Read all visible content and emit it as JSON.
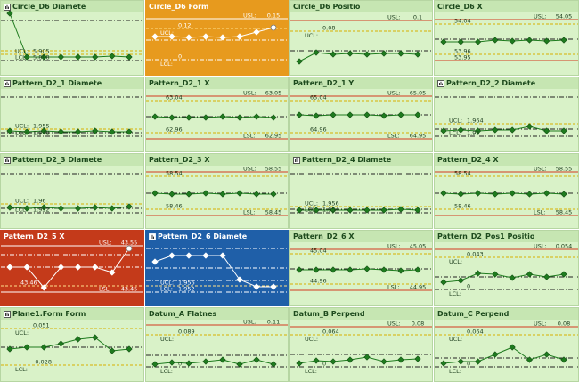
{
  "colors": {
    "tile_bg": "#d9f2c8",
    "tile_title_bg": "#c6e6b2",
    "line_green": "#1e7b1e",
    "orange": "#e79a1e",
    "red": "#c43a1a",
    "blue": "#1f5fa8",
    "ucl_red": "#d23a1f",
    "dash_yellow": "#d8b000"
  },
  "tiles": [
    {
      "title": "Circle_D6 Diamete",
      "icon": "histogram-icon",
      "state": "normal",
      "labels": {
        "ucl": "UCL:",
        "lcl": "LCL:",
        "c1": "5.905",
        "c2": "5.898"
      }
    },
    {
      "title": "Circle_D6 Form",
      "icon": "",
      "state": "orange",
      "labels": {
        "usl": "USL:",
        "usl_v": "0.15",
        "ucl": "UCL:",
        "ucl_v": "0.12",
        "lcl": "LCL:",
        "lcl_v": "0"
      }
    },
    {
      "title": "Circle_D6 Positio",
      "icon": "",
      "state": "normal",
      "labels": {
        "usl": "USL:",
        "usl_v": "0.1",
        "ucl": "UCL:",
        "ucl_v": "0.08"
      }
    },
    {
      "title": "Circle_D6 X",
      "icon": "",
      "state": "normal",
      "labels": {
        "usl": "USL:",
        "usl_v": "54.05",
        "c1": "54.04",
        "c2": "53.96",
        "c3": "53.95"
      }
    },
    {
      "title": "Pattern_D2_1 Diamete",
      "icon": "histogram-icon",
      "state": "normal",
      "labels": {
        "ucl": "UCL:",
        "lcl": "LCL:",
        "c1": "1.955",
        "c2": "1.948"
      }
    },
    {
      "title": "Pattern_D2_1 X",
      "icon": "",
      "state": "normal",
      "labels": {
        "usl": "USL:",
        "usl_v": "63.05",
        "c1": "63.04",
        "c2": "62.96",
        "lsl": "LSL:",
        "lsl_v": "62.95"
      }
    },
    {
      "title": "Pattern_D2_1 Y",
      "icon": "",
      "state": "normal",
      "labels": {
        "usl": "USL:",
        "usl_v": "65.05",
        "c1": "65.04",
        "c2": "64.96",
        "lsl": "LSL:",
        "lsl_v": "64.95"
      }
    },
    {
      "title": "Pattern_D2_2 Diamete",
      "icon": "histogram-icon",
      "state": "normal",
      "labels": {
        "ucl": "UCL:",
        "lcl": "LCL:",
        "c1": "1.964",
        "c2": "1.95"
      }
    },
    {
      "title": "Pattern_D2_3 Diamete",
      "icon": "histogram-icon",
      "state": "normal",
      "labels": {
        "ucl": "UCL:",
        "lcl": "LCL:",
        "c1": "1.96",
        "c2": "1.952"
      }
    },
    {
      "title": "Pattern_D2_3 X",
      "icon": "",
      "state": "normal",
      "labels": {
        "usl": "USL:",
        "usl_v": "58.55",
        "c1": "58.54",
        "c2": "58.46",
        "lsl": "LSL:",
        "lsl_v": "58.45"
      }
    },
    {
      "title": "Pattern_D2_4 Diamete",
      "icon": "histogram-icon",
      "state": "normal",
      "labels": {
        "ucl": "UCL:",
        "lcl": "LCL:",
        "c1": "1.956",
        "c2": "1.954"
      }
    },
    {
      "title": "Pattern_D2_4 X",
      "icon": "",
      "state": "normal",
      "labels": {
        "usl": "USL:",
        "usl_v": "58.55",
        "c1": "58.54",
        "c2": "58.46",
        "lsl": "LSL:",
        "lsl_v": "58.45"
      }
    },
    {
      "title": "Pattern_D2_5 X",
      "icon": "",
      "state": "red",
      "labels": {
        "usl": "USL:",
        "usl_v": "43.55",
        "c1": "43.46",
        "lsl": "LSL:",
        "lsl_v": "43.45"
      }
    },
    {
      "title": "Pattern_D2_6 Diamete",
      "icon": "histogram-icon",
      "state": "blue",
      "labels": {
        "ucl": "UCL:",
        "lcl": "LCL:",
        "c1": "1.956",
        "c2": "1.952"
      }
    },
    {
      "title": "Pattern_D2_6 X",
      "icon": "",
      "state": "normal",
      "labels": {
        "usl": "USL:",
        "usl_v": "45.05",
        "c1": "45.04",
        "c2": "44.96",
        "lsl": "LSL:",
        "lsl_v": "44.95"
      }
    },
    {
      "title": "Pattern_D2_Pos1 Positio",
      "icon": "",
      "state": "normal",
      "labels": {
        "usl": "USL:",
        "usl_v": "0.054",
        "ucl": "UCL:",
        "ucl_v": "0.043",
        "lcl": "LCL:",
        "lcl_v": "0"
      }
    },
    {
      "title": "Plane1.Form Form",
      "icon": "histogram-icon",
      "state": "normal",
      "labels": {
        "ucl": "UCL:",
        "ucl_v": "0.051",
        "lcl": "LCL:",
        "lcl_v": "-0.028"
      }
    },
    {
      "title": "Datum_A Flatnes",
      "icon": "",
      "state": "normal",
      "labels": {
        "usl": "USL:",
        "usl_v": "0.11",
        "ucl": "UCL:",
        "ucl_v": "0.089",
        "lcl": "LCL:",
        "lcl_v": "0"
      }
    },
    {
      "title": "Datum_B Perpend",
      "icon": "",
      "state": "normal",
      "labels": {
        "usl": "USL:",
        "usl_v": "0.08",
        "ucl": "UCL:",
        "ucl_v": "0.064",
        "lcl": "LCL:",
        "lcl_v": "0"
      }
    },
    {
      "title": "Datum_C Perpend",
      "icon": "",
      "state": "normal",
      "labels": {
        "usl": "USL:",
        "usl_v": "0.08",
        "ucl": "UCL:",
        "ucl_v": "0.064",
        "lcl": "LCL:",
        "lcl_v": "0"
      }
    }
  ]
}
